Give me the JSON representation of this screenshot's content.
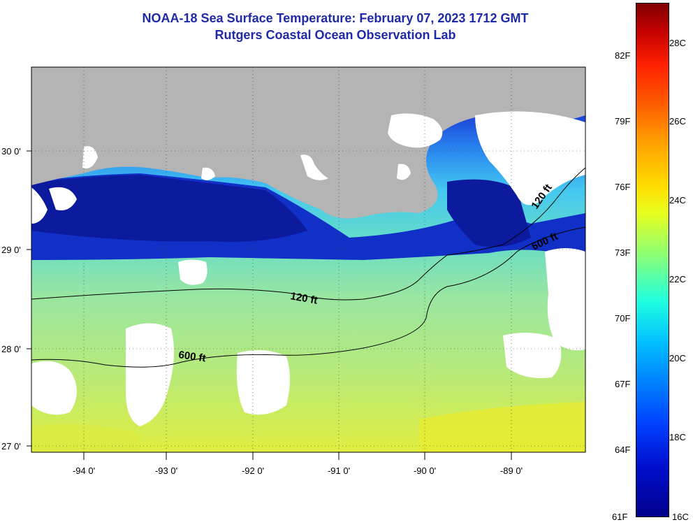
{
  "header": {
    "title": "NOAA-18 Sea Surface Temperature:  February 07, 2023 1712 GMT",
    "subtitle": "Rutgers Coastal Ocean Observation Lab"
  },
  "map": {
    "lon_labels": [
      "-94 0'",
      "-93 0'",
      "-92 0'",
      "-91 0'",
      "-90 0'",
      "-89 0'"
    ],
    "lat_labels": [
      "30 0'",
      "29 0'",
      "28 0'",
      "27 0'"
    ],
    "contour_labels": {
      "c120_west": "120 ft",
      "c120_east": "120 ft",
      "c600_west": "600 ft",
      "c600_east": "600 ft"
    },
    "colors": {
      "land": "#b4b4b4",
      "cloud": "#ffffff",
      "coastal_cold": "#10189a",
      "warm": "#c8e850"
    }
  },
  "colorbar": {
    "fahrenheit": [
      "82F",
      "79F",
      "76F",
      "73F",
      "70F",
      "67F",
      "64F",
      "61F"
    ],
    "celsius": [
      "28C",
      "26C",
      "24C",
      "22C",
      "20C",
      "18C",
      "16C"
    ]
  }
}
